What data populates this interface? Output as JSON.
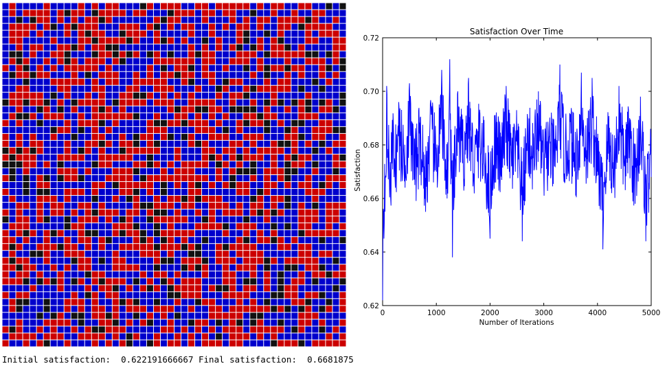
{
  "grid": {
    "colors": {
      "red": "#cc0000",
      "blue": "#0000cc",
      "black": "#111111",
      "gap": "#ffffff"
    },
    "legend_none": ""
  },
  "status": {
    "initial_label": "Initial satisfaction:",
    "initial_value": "0.622191666667",
    "final_label": "Final satisfaction:",
    "final_value": "0.6681875"
  },
  "chart_data": {
    "type": "line",
    "title": "Satisfaction Over Time",
    "xlabel": "Number of Iterations",
    "ylabel": "Satisfaction",
    "xlim": [
      0,
      5000
    ],
    "ylim": [
      0.62,
      0.72
    ],
    "xticks": [
      "0",
      "1000",
      "2000",
      "3000",
      "4000",
      "5000"
    ],
    "yticks": [
      "0.62",
      "0.64",
      "0.66",
      "0.68",
      "0.70",
      "0.72"
    ],
    "grid": false,
    "line_color": "#0000ff",
    "series": [
      {
        "x": [
          0,
          25,
          50,
          75,
          100,
          150,
          200,
          250,
          300,
          400,
          500,
          600,
          700,
          800,
          900,
          1000,
          1100,
          1200,
          1250,
          1300,
          1400,
          1500,
          1600,
          1700,
          1800,
          1900,
          2000,
          2100,
          2200,
          2300,
          2400,
          2500,
          2600,
          2700,
          2800,
          2900,
          3000,
          3100,
          3200,
          3300,
          3400,
          3500,
          3600,
          3700,
          3800,
          3900,
          4000,
          4100,
          4200,
          4300,
          4400,
          4500,
          4600,
          4700,
          4800,
          4900,
          5000
        ],
        "y": [
          0.622,
          0.645,
          0.668,
          0.702,
          0.675,
          0.66,
          0.688,
          0.672,
          0.696,
          0.67,
          0.703,
          0.665,
          0.69,
          0.655,
          0.695,
          0.67,
          0.708,
          0.66,
          0.712,
          0.638,
          0.7,
          0.675,
          0.705,
          0.668,
          0.69,
          0.672,
          0.645,
          0.688,
          0.67,
          0.702,
          0.672,
          0.682,
          0.644,
          0.69,
          0.675,
          0.7,
          0.668,
          0.683,
          0.672,
          0.71,
          0.676,
          0.69,
          0.67,
          0.707,
          0.678,
          0.705,
          0.67,
          0.641,
          0.688,
          0.664,
          0.702,
          0.672,
          0.69,
          0.658,
          0.698,
          0.644,
          0.668
        ]
      }
    ]
  }
}
